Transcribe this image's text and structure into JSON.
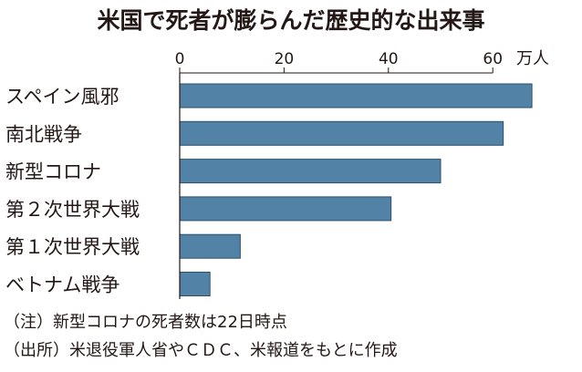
{
  "chart_data": {
    "type": "bar",
    "orientation": "horizontal",
    "title": "米国で死者が膨らんだ歴史的な出来事",
    "unit": "万人",
    "xlim": [
      0,
      67
    ],
    "ticks": [
      0,
      20,
      40,
      60
    ],
    "categories": [
      "スペイン風邪",
      "南北戦争",
      "新型コロナ",
      "第２次世界大戦",
      "第１次世界大戦",
      "ベトナム戦争"
    ],
    "values": [
      67.5,
      62,
      50,
      40.5,
      11.6,
      5.8
    ],
    "notes": [
      "（注）新型コロナの死者数は22日時点",
      "（出所）米退役軍人省やＣＤＣ、米報道をもとに作成"
    ]
  }
}
